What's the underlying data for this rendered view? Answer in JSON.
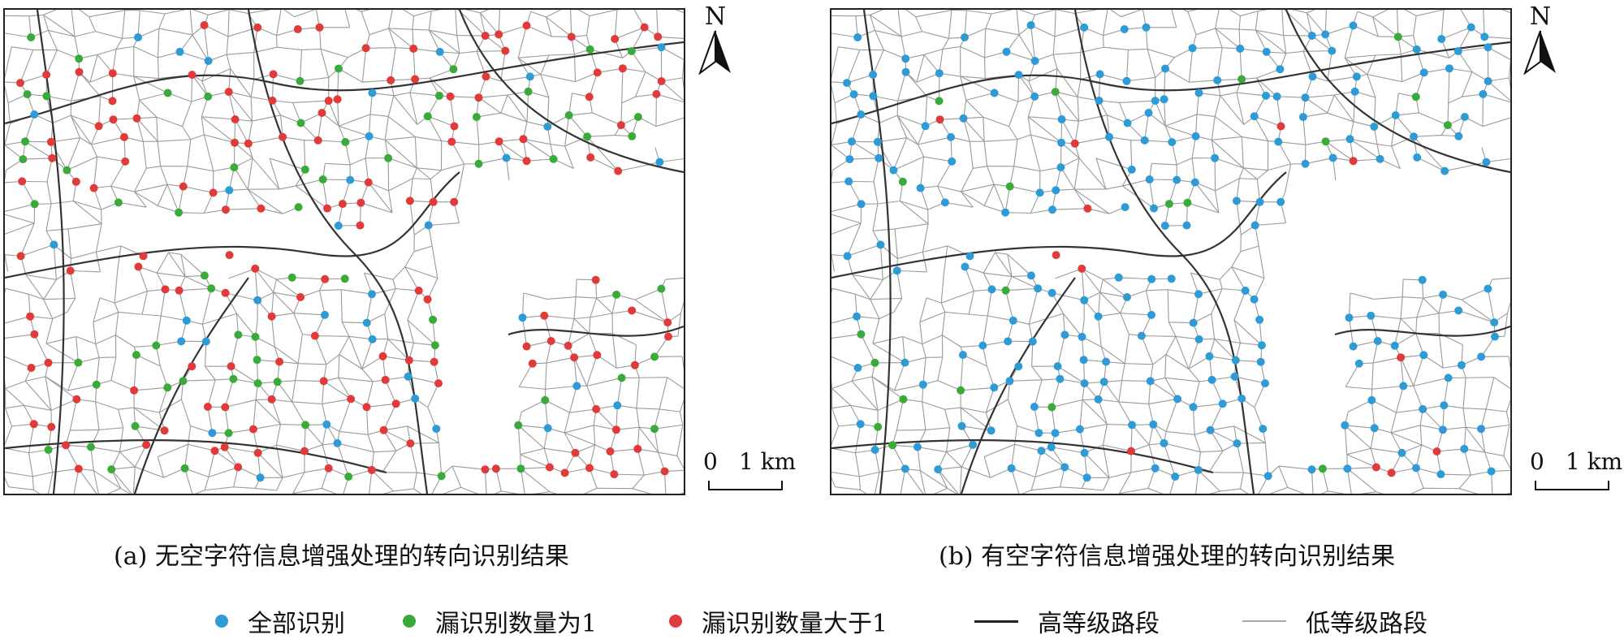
{
  "panels": [
    {
      "id": "a",
      "caption": "(a) 无空字符信息增强处理的转向识别结果",
      "north": "N",
      "scale_zero": "0",
      "scale_length": "1 km"
    },
    {
      "id": "b",
      "caption": "(b) 有空字符信息增强处理的转向识别结果",
      "north": "N",
      "scale_zero": "0",
      "scale_length": "1 km"
    }
  ],
  "legend": {
    "all_identified": "全部识别",
    "missed_one": "漏识别数量为1",
    "missed_many": "漏识别数量大于1",
    "high_grade": "高等级路段",
    "low_grade": "低等级路段"
  },
  "colors": {
    "all_identified": "#2e9bd6",
    "missed_one": "#3aaa3a",
    "missed_many": "#e03a3a",
    "high_road": "#333333",
    "low_road": "#9a9a9a"
  },
  "dot_mix": {
    "a": {
      "all_identified": 0.15,
      "missed_one": 0.25,
      "missed_many": 0.6
    },
    "b": {
      "all_identified": 0.88,
      "missed_one": 0.07,
      "missed_many": 0.05
    }
  }
}
